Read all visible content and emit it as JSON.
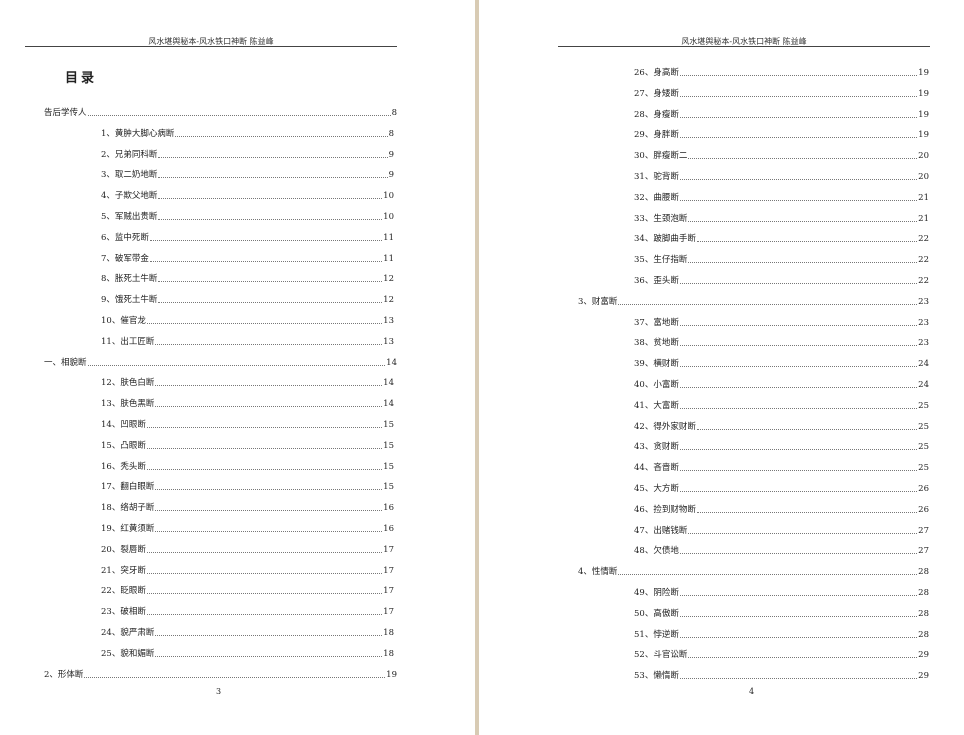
{
  "header_text": "风水堪舆秘本-风水铁口神断 陈益峰",
  "colors": {
    "gutter": "#d8cbb4",
    "text": "#222222"
  },
  "left_page": {
    "title": "目录",
    "page_number": "3",
    "entries": [
      {
        "level": 1,
        "label": "告后学传人",
        "page": "8"
      },
      {
        "level": 2,
        "label": "1、黄肿大脚心病断",
        "page": "8"
      },
      {
        "level": 2,
        "label": "2、兄弟同科断",
        "page": "9"
      },
      {
        "level": 2,
        "label": "3、取二奶地断",
        "page": "9"
      },
      {
        "level": 2,
        "label": "4、子欺父地断",
        "page": "10"
      },
      {
        "level": 2,
        "label": "5、军贼出贵断",
        "page": "10"
      },
      {
        "level": 2,
        "label": "6、监中死断",
        "page": "11"
      },
      {
        "level": 2,
        "label": "7、破军带金",
        "page": "11"
      },
      {
        "level": 2,
        "label": "8、胀死土牛断",
        "page": "12"
      },
      {
        "level": 2,
        "label": "9、饿死土牛断",
        "page": "12"
      },
      {
        "level": 2,
        "label": "10、催官龙",
        "page": "13"
      },
      {
        "level": 2,
        "label": "11、出工匠断",
        "page": "13"
      },
      {
        "level": 1,
        "label": "一、相貌断",
        "page": "14"
      },
      {
        "level": 2,
        "label": "12、肤色白断",
        "page": "14"
      },
      {
        "level": 2,
        "label": "13、肤色黑断",
        "page": "14"
      },
      {
        "level": 2,
        "label": "14、凹眼断",
        "page": "15"
      },
      {
        "level": 2,
        "label": "15、凸眼断",
        "page": "15"
      },
      {
        "level": 2,
        "label": "16、秃头断",
        "page": "15"
      },
      {
        "level": 2,
        "label": "17、翻白眼断",
        "page": "15"
      },
      {
        "level": 2,
        "label": "18、络胡子断",
        "page": "16"
      },
      {
        "level": 2,
        "label": "19、红黄须断",
        "page": "16"
      },
      {
        "level": 2,
        "label": "20、裂唇断",
        "page": "17"
      },
      {
        "level": 2,
        "label": "21、突牙断",
        "page": "17"
      },
      {
        "level": 2,
        "label": "22、眨眼断",
        "page": "17"
      },
      {
        "level": 2,
        "label": "23、破相断",
        "page": "17"
      },
      {
        "level": 2,
        "label": "24、貌严肃断",
        "page": "18"
      },
      {
        "level": 2,
        "label": "25、貌和媚断",
        "page": "18"
      },
      {
        "level": 1,
        "label": "2、形体断",
        "page": "19"
      }
    ]
  },
  "right_page": {
    "page_number": "4",
    "entries": [
      {
        "level": 2,
        "label": "26、身高断",
        "page": "19"
      },
      {
        "level": 2,
        "label": "27、身矮断",
        "page": "19"
      },
      {
        "level": 2,
        "label": "28、身瘦断",
        "page": "19"
      },
      {
        "level": 2,
        "label": "29、身胖断",
        "page": "19"
      },
      {
        "level": 2,
        "label": "30、胖瘦断二",
        "page": "20"
      },
      {
        "level": 2,
        "label": "31、驼背断",
        "page": "20"
      },
      {
        "level": 2,
        "label": "32、曲腰断",
        "page": "21"
      },
      {
        "level": 2,
        "label": "33、生颈泡断",
        "page": "21"
      },
      {
        "level": 2,
        "label": "34、跛脚曲手断",
        "page": "22"
      },
      {
        "level": 2,
        "label": "35、生仔指断",
        "page": "22"
      },
      {
        "level": 2,
        "label": "36、歪头断",
        "page": "22"
      },
      {
        "level": 1,
        "label": "3、财富断",
        "page": "23"
      },
      {
        "level": 2,
        "label": "37、富地断",
        "page": "23"
      },
      {
        "level": 2,
        "label": "38、贫地断",
        "page": "23"
      },
      {
        "level": 2,
        "label": "39、横财断",
        "page": "24"
      },
      {
        "level": 2,
        "label": "40、小富断",
        "page": "24"
      },
      {
        "level": 2,
        "label": "41、大富断",
        "page": "25"
      },
      {
        "level": 2,
        "label": "42、得外家财断",
        "page": "25"
      },
      {
        "level": 2,
        "label": "43、贪财断",
        "page": "25"
      },
      {
        "level": 2,
        "label": "44、吝啬断",
        "page": "25"
      },
      {
        "level": 2,
        "label": "45、大方断",
        "page": "26"
      },
      {
        "level": 2,
        "label": "46、捡到财物断",
        "page": "26"
      },
      {
        "level": 2,
        "label": "47、出赌钱断",
        "page": "27"
      },
      {
        "level": 2,
        "label": "48、欠债地",
        "page": "27"
      },
      {
        "level": 1,
        "label": "4、性情断",
        "page": "28"
      },
      {
        "level": 2,
        "label": "49、阴险断",
        "page": "28"
      },
      {
        "level": 2,
        "label": "50、高傲断",
        "page": "28"
      },
      {
        "level": 2,
        "label": "51、悖逆断",
        "page": "28"
      },
      {
        "level": 2,
        "label": "52、斗官讼断",
        "page": "29"
      },
      {
        "level": 2,
        "label": "53、懒惰断",
        "page": "29"
      }
    ]
  }
}
